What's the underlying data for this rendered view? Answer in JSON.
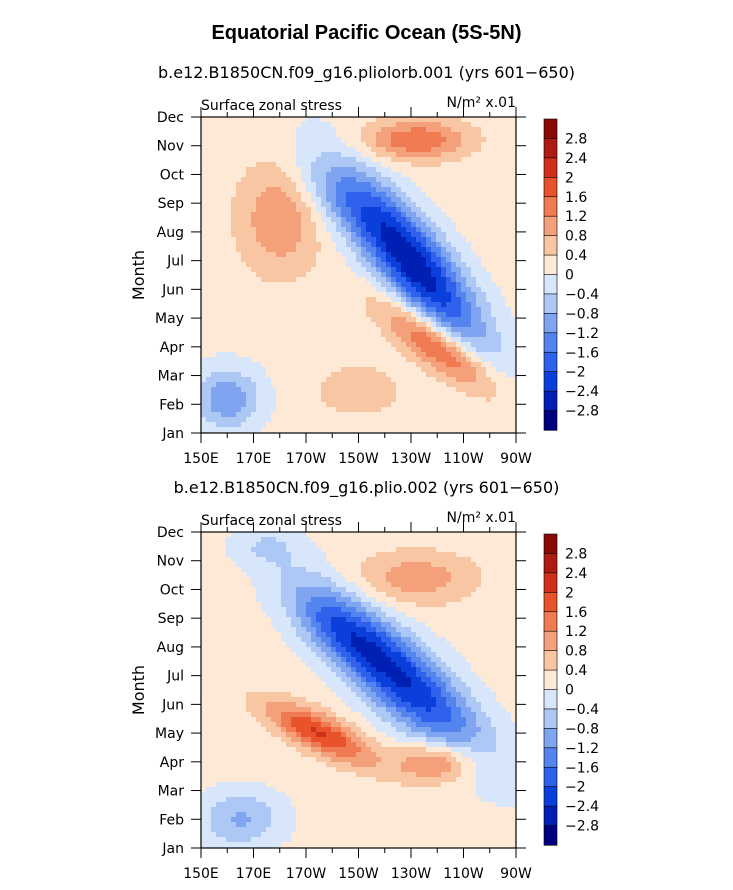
{
  "title": "Equatorial Pacific Ocean (5S-5N)",
  "chart_data": [
    {
      "type": "heatmap",
      "title": "b.e12.B1850CN.f09_g16.pliolorb.001 (yrs 601−650)",
      "left_label": "Surface zonal stress",
      "units_label": "N/m² x.01",
      "ylabel": "Month",
      "x_ticks": [
        "150E",
        "170E",
        "170W",
        "150W",
        "130W",
        "110W",
        "90W"
      ],
      "x_lon": [
        150,
        170,
        190,
        210,
        230,
        250,
        270
      ],
      "xlim": [
        150,
        270
      ],
      "y_ticks": [
        "Jan",
        "Feb",
        "Mar",
        "Apr",
        "May",
        "Jun",
        "Jul",
        "Aug",
        "Sep",
        "Oct",
        "Nov",
        "Dec"
      ],
      "ylim": [
        1,
        12
      ],
      "levels": [
        -2.8,
        -2.4,
        -2,
        -1.6,
        -1.2,
        -0.8,
        -0.4,
        0,
        0.4,
        0.8,
        1.2,
        1.6,
        2,
        2.4,
        2.8
      ],
      "colorbar_labels": [
        "2.8",
        "2.4",
        "2",
        "1.6",
        "1.2",
        "0.8",
        "0.4",
        "0",
        "−0.4",
        "−0.8",
        "−1.2",
        "−1.6",
        "−2",
        "−2.4",
        "−2.8"
      ],
      "features": [
        {
          "lon": 230,
          "month": 7.0,
          "value": -2.9,
          "lon_width": 38,
          "month_width": 2.4,
          "tilt": -0.09
        },
        {
          "lon": 200,
          "month": 9.3,
          "value": -0.6,
          "lon_width": 25,
          "month_width": 1.6,
          "tilt": -0.05
        },
        {
          "lon": 180,
          "month": 8.5,
          "value": 1.0,
          "lon_width": 22,
          "month_width": 2.8,
          "tilt": 0
        },
        {
          "lon": 232,
          "month": 11.2,
          "value": 1.4,
          "lon_width": 28,
          "month_width": 1.0,
          "tilt": 0
        },
        {
          "lon": 240,
          "month": 4.0,
          "value": 1.8,
          "lon_width": 30,
          "month_width": 1.2,
          "tilt": -0.06
        },
        {
          "lon": 160,
          "month": 2.2,
          "value": -1.3,
          "lon_width": 18,
          "month_width": 1.5,
          "tilt": 0
        },
        {
          "lon": 210,
          "month": 2.5,
          "value": 0.5,
          "lon_width": 25,
          "month_width": 1.4,
          "tilt": 0
        }
      ]
    },
    {
      "type": "heatmap",
      "title": "b.e12.B1850CN.f09_g16.plio.002 (yrs 601−650)",
      "left_label": "Surface zonal stress",
      "units_label": "N/m² x.01",
      "ylabel": "Month",
      "x_ticks": [
        "150E",
        "170E",
        "170W",
        "150W",
        "130W",
        "110W",
        "90W"
      ],
      "x_lon": [
        150,
        170,
        190,
        210,
        230,
        250,
        270
      ],
      "xlim": [
        150,
        270
      ],
      "y_ticks": [
        "Jan",
        "Feb",
        "Mar",
        "Apr",
        "May",
        "Jun",
        "Jul",
        "Aug",
        "Sep",
        "Oct",
        "Nov",
        "Dec"
      ],
      "ylim": [
        1,
        12
      ],
      "levels": [
        -2.8,
        -2.4,
        -2,
        -1.6,
        -1.2,
        -0.8,
        -0.4,
        0,
        0.4,
        0.8,
        1.2,
        1.6,
        2,
        2.4,
        2.8
      ],
      "colorbar_labels": [
        "2.8",
        "2.4",
        "2",
        "1.6",
        "1.2",
        "0.8",
        "0.4",
        "0",
        "−0.4",
        "−0.8",
        "−1.2",
        "−1.6",
        "−2",
        "−2.4",
        "−2.8"
      ],
      "features": [
        {
          "lon": 225,
          "month": 7.0,
          "value": -2.6,
          "lon_width": 45,
          "month_width": 2.2,
          "tilt": -0.07
        },
        {
          "lon": 200,
          "month": 8.8,
          "value": -0.8,
          "lon_width": 25,
          "month_width": 1.6,
          "tilt": -0.05
        },
        {
          "lon": 195,
          "month": 5.0,
          "value": 1.9,
          "lon_width": 28,
          "month_width": 1.0,
          "tilt": -0.04
        },
        {
          "lon": 240,
          "month": 4.0,
          "value": 1.3,
          "lon_width": 22,
          "month_width": 1.0,
          "tilt": 0
        },
        {
          "lon": 232,
          "month": 10.4,
          "value": 0.9,
          "lon_width": 32,
          "month_width": 1.3,
          "tilt": 0
        },
        {
          "lon": 165,
          "month": 2.0,
          "value": -1.0,
          "lon_width": 22,
          "month_width": 1.4,
          "tilt": 0
        },
        {
          "lon": 175,
          "month": 11.5,
          "value": -0.5,
          "lon_width": 18,
          "month_width": 1.0,
          "tilt": 0
        }
      ]
    }
  ],
  "colors": {
    "palette": [
      "#00007f",
      "#0020b4",
      "#0b3fdb",
      "#2f61ec",
      "#5484ee",
      "#7fa5f1",
      "#aec8f5",
      "#d8e6fb",
      "#fde9d6",
      "#f9c6a4",
      "#f4a07a",
      "#f07a52",
      "#e8532c",
      "#d0301a",
      "#ae1b10",
      "#8a0b06"
    ]
  }
}
